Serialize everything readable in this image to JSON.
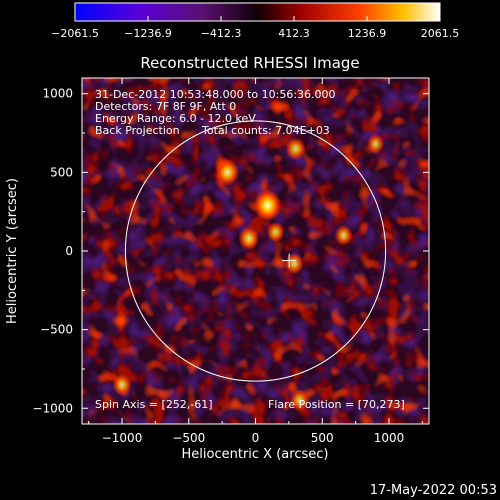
{
  "chart_data": {
    "type": "heatmap",
    "title": "Reconstructed RHESSI Image",
    "xlabel": "Heliocentric X (arcsec)",
    "ylabel": "Heliocentric Y (arcsec)",
    "xlim": [
      -1300,
      1300
    ],
    "ylim": [
      -1100,
      1100
    ],
    "x_ticks": [
      -1000,
      -500,
      0,
      500,
      1000
    ],
    "x_tick_labels": [
      "−1000",
      "−500",
      "0",
      "500",
      "1000"
    ],
    "y_ticks": [
      -1000,
      -500,
      0,
      500,
      1000
    ],
    "y_tick_labels": [
      "−1000",
      "−500",
      "0",
      "500",
      "1000"
    ],
    "colorbar": {
      "ticks": [
        -2061.5,
        -1236.9,
        -412.3,
        412.3,
        1236.9,
        2061.5
      ],
      "tick_labels": [
        "−2061.5",
        "−1236.9",
        "−412.3",
        "412.3",
        "1236.9",
        "2061.5"
      ],
      "range": [
        -2061.5,
        2061.5
      ],
      "colors": [
        "#0000ff",
        "#6a00c8",
        "#4a0a6a",
        "#1a0010",
        "#9a0000",
        "#ff3000",
        "#ffb000",
        "#ffffff"
      ]
    },
    "annotations": [
      "31-Dec-2012 10:53:48.000 to 10:56:36.000",
      "Detectors: 7F 8F 9F, Att 0",
      "Energy Range: 6.0 - 12.0 keV",
      "Back Projection",
      "Total counts: 7.04E+03"
    ],
    "spin_axis_label": "Spin Axis = [252,-61]",
    "flare_position_label": "Flare Position = [70,273]",
    "spin_axis": [
      252,
      -61
    ],
    "solar_limb_radius": 975,
    "hot_spots": [
      {
        "x": 90,
        "y": 290,
        "level": 1.0
      },
      {
        "x": -210,
        "y": 500,
        "level": 0.75
      },
      {
        "x": -50,
        "y": 80,
        "level": 0.6
      },
      {
        "x": 300,
        "y": 650,
        "level": 0.55
      },
      {
        "x": 290,
        "y": -80,
        "level": 0.5
      },
      {
        "x": 330,
        "y": -950,
        "level": 0.5
      },
      {
        "x": 150,
        "y": 120,
        "level": 0.45
      },
      {
        "x": -1000,
        "y": -850,
        "level": 0.5
      },
      {
        "x": 900,
        "y": 680,
        "level": 0.4
      },
      {
        "x": 660,
        "y": 100,
        "level": 0.45
      }
    ]
  },
  "footer": {
    "date_stamp": "17-May-2022 00:53"
  },
  "colors": {
    "background": "#000000",
    "text": "#ffffff",
    "limb_circle": "#ffffff"
  }
}
